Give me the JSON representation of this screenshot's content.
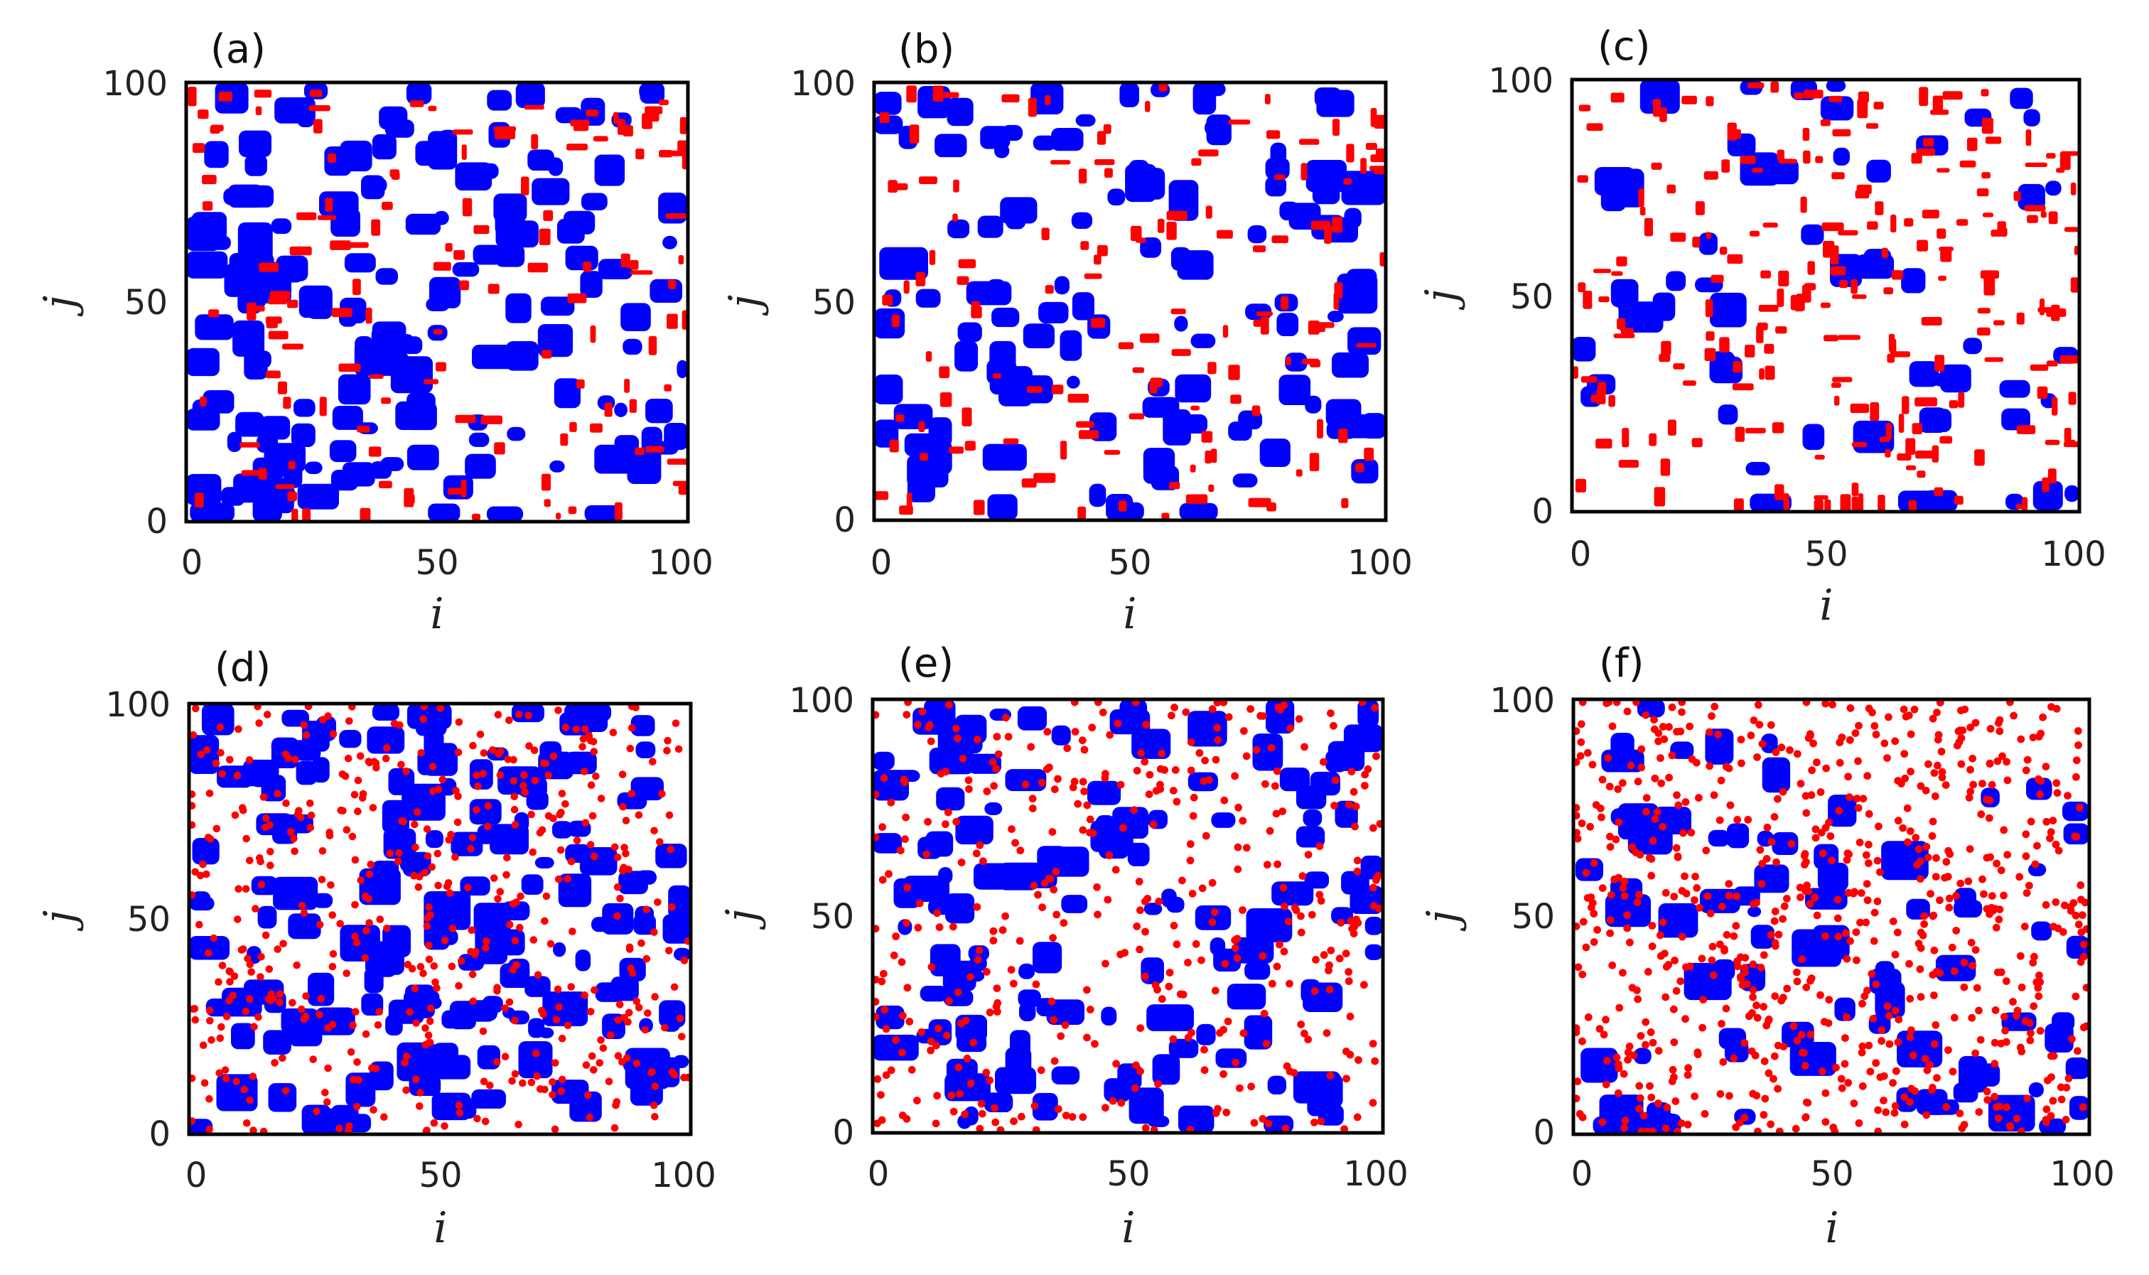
{
  "colors": {
    "species_a": "#ff0000",
    "species_b": "#0000ff",
    "background": "#ffffff",
    "frame": "#000000"
  },
  "chart_data": [
    {
      "type": "scatter",
      "panel_label": "(a)",
      "xlabel": "i",
      "ylabel": "j",
      "xlim": [
        0,
        100
      ],
      "ylim": [
        0,
        100
      ],
      "xticks": [
        "0",
        "50",
        "100"
      ],
      "yticks": [
        "0",
        "50",
        "100"
      ],
      "grid": false,
      "lattice_size": 100,
      "blue_fraction": 0.62,
      "red_fraction": 0.2,
      "red_style": "clusters",
      "seed": 11
    },
    {
      "type": "scatter",
      "panel_label": "(b)",
      "xlabel": "i",
      "ylabel": "j",
      "xlim": [
        0,
        100
      ],
      "ylim": [
        0,
        100
      ],
      "xticks": [
        "0",
        "50",
        "100"
      ],
      "yticks": [
        "0",
        "50",
        "100"
      ],
      "grid": false,
      "lattice_size": 100,
      "blue_fraction": 0.45,
      "red_fraction": 0.2,
      "red_style": "clusters",
      "seed": 23
    },
    {
      "type": "scatter",
      "panel_label": "(c)",
      "xlabel": "i",
      "ylabel": "j",
      "xlim": [
        0,
        100
      ],
      "ylim": [
        0,
        100
      ],
      "xticks": [
        "0",
        "50",
        "100"
      ],
      "yticks": [
        "0",
        "50",
        "100"
      ],
      "grid": false,
      "lattice_size": 100,
      "blue_fraction": 0.22,
      "red_fraction": 0.33,
      "red_style": "clusters",
      "seed": 37
    },
    {
      "type": "scatter",
      "panel_label": "(d)",
      "xlabel": "i",
      "ylabel": "j",
      "xlim": [
        0,
        100
      ],
      "ylim": [
        0,
        100
      ],
      "xticks": [
        "0",
        "50",
        "100"
      ],
      "yticks": [
        "0",
        "50",
        "100"
      ],
      "grid": false,
      "lattice_size": 100,
      "blue_fraction": 0.65,
      "red_fraction": 0.12,
      "red_style": "dots",
      "seed": 41
    },
    {
      "type": "scatter",
      "panel_label": "(e)",
      "xlabel": "i",
      "ylabel": "j",
      "xlim": [
        0,
        100
      ],
      "ylim": [
        0,
        100
      ],
      "xticks": [
        "0",
        "50",
        "100"
      ],
      "yticks": [
        "0",
        "50",
        "100"
      ],
      "grid": false,
      "lattice_size": 100,
      "blue_fraction": 0.5,
      "red_fraction": 0.1,
      "red_style": "dots",
      "seed": 53
    },
    {
      "type": "scatter",
      "panel_label": "(f)",
      "xlabel": "i",
      "ylabel": "j",
      "xlim": [
        0,
        100
      ],
      "ylim": [
        0,
        100
      ],
      "xticks": [
        "0",
        "50",
        "100"
      ],
      "yticks": [
        "0",
        "50",
        "100"
      ],
      "grid": false,
      "lattice_size": 100,
      "blue_fraction": 0.3,
      "red_fraction": 0.18,
      "red_style": "dots",
      "seed": 67
    }
  ]
}
